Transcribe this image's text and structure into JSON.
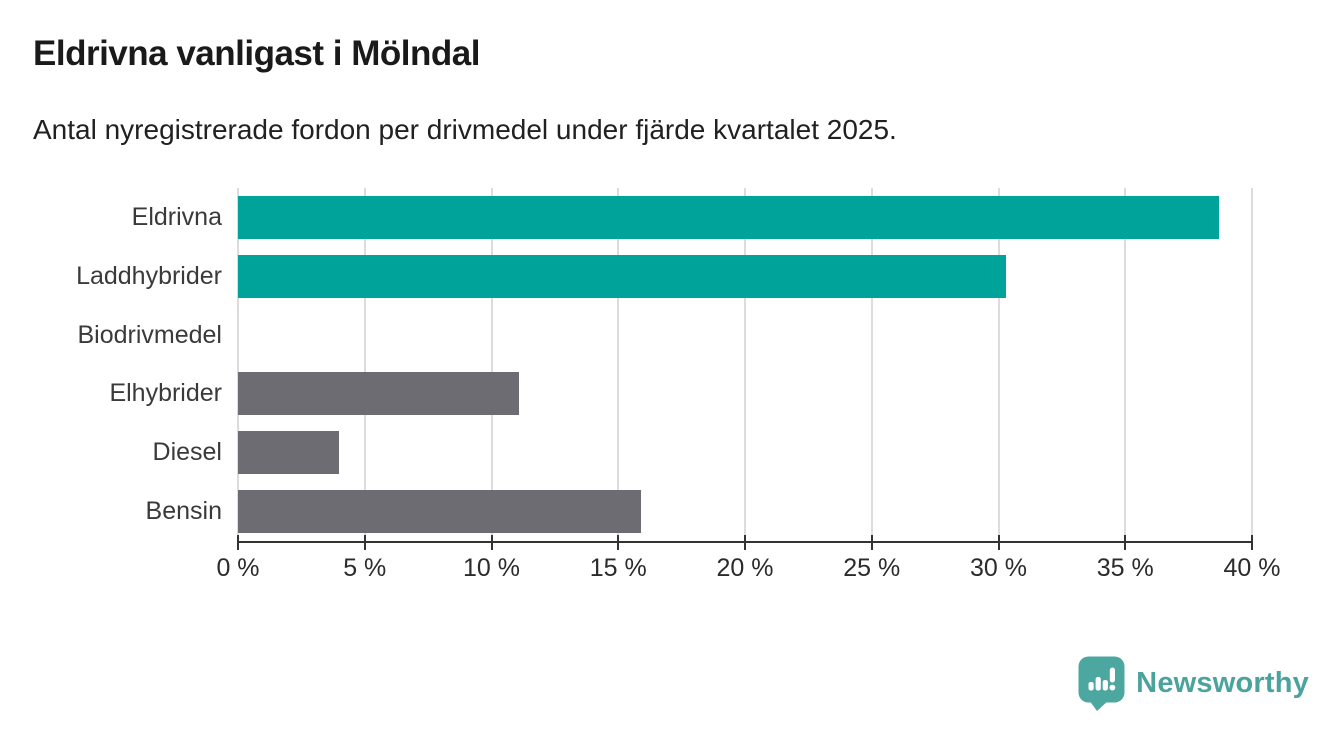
{
  "header": {
    "title": "Eldrivna vanligast i Mölndal",
    "subtitle": "Antal nyregistrerade fordon per drivmedel under fjärde kvartalet 2025."
  },
  "chart_data": {
    "type": "bar",
    "orientation": "horizontal",
    "title": "Eldrivna vanligast i Mölndal",
    "subtitle": "Antal nyregistrerade fordon per drivmedel under fjärde kvartalet 2025.",
    "categories": [
      "Eldrivna",
      "Laddhybrider",
      "Biodrivmedel",
      "Elhybrider",
      "Diesel",
      "Bensin"
    ],
    "values": [
      38.7,
      30.3,
      0,
      11.1,
      4.0,
      15.9
    ],
    "unit": "%",
    "bar_colors": [
      "#00a39a",
      "#00a39a",
      "#6d6c72",
      "#6d6c72",
      "#6d6c72",
      "#6d6c72"
    ],
    "xlim": [
      0,
      40
    ],
    "x_tick_values": [
      0,
      5,
      10,
      15,
      20,
      25,
      30,
      35,
      40
    ],
    "x_tick_labels": [
      "0 %",
      "5 %",
      "10 %",
      "15 %",
      "20 %",
      "25 %",
      "30 %",
      "35 %",
      "40 %"
    ],
    "grid": true,
    "legend": false,
    "xlabel": "",
    "ylabel": ""
  },
  "branding": {
    "logo_text": "Newsworthy",
    "logo_color": "#4ba39d",
    "logo_mark_color": "#4da7a1"
  },
  "colors": {
    "bar_teal": "#00a39a",
    "bar_gray": "#6d6c72",
    "axis_line": "#333333",
    "gridline": "#dcdcdc",
    "title_text": "#1a1a1a",
    "subtitle_text": "#212121",
    "category_label_text": "#3a3a3a",
    "tick_label_text": "#2b2b2b",
    "background": "#ffffff"
  }
}
